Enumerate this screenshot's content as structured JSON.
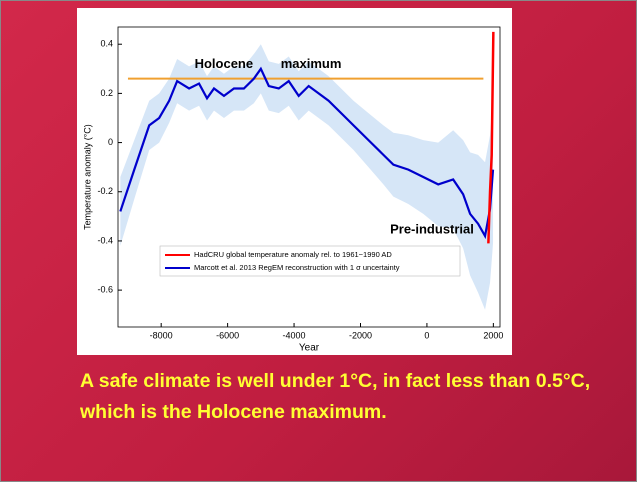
{
  "chart_data": {
    "type": "line",
    "x_label": "Year",
    "y_label": "Temperature anomaly (°C)",
    "xlim": [
      -9300,
      2200
    ],
    "xticks": [
      -8000,
      -6000,
      -4000,
      -2000,
      0,
      2000
    ],
    "ylim": [
      -0.75,
      0.47
    ],
    "yticks": [
      -0.6,
      -0.4,
      -0.2,
      0,
      0.2,
      0.4
    ],
    "grid": false,
    "series": [
      {
        "name": "HadCRU global temperature anomaly rel. to 1961−1990 AD",
        "color": "#ff0000",
        "x": [
          1850,
          1900,
          1950,
          2000
        ],
        "values": [
          -0.41,
          -0.2,
          -0.05,
          0.45
        ]
      },
      {
        "name": "Marcott et al. 2013 RegEM reconstruction with 1 σ uncertainty",
        "color": "#0000cc",
        "band_color": "#d6e6f7",
        "x": [
          -9230,
          -8810,
          -8360,
          -8060,
          -7760,
          -7520,
          -7160,
          -6860,
          -6620,
          -6410,
          -6110,
          -5810,
          -5510,
          -5210,
          -5000,
          -4760,
          -4460,
          -4160,
          -3860,
          -3560,
          -3260,
          -2960,
          -2510,
          -2210,
          -1760,
          -1310,
          -1010,
          -560,
          -110,
          340,
          790,
          1090,
          1300,
          1540,
          1750,
          1900,
          1990
        ],
        "values": [
          -0.28,
          -0.11,
          0.07,
          0.1,
          0.17,
          0.25,
          0.22,
          0.24,
          0.18,
          0.22,
          0.19,
          0.22,
          0.22,
          0.26,
          0.3,
          0.23,
          0.22,
          0.25,
          0.19,
          0.23,
          0.2,
          0.17,
          0.11,
          0.07,
          0.01,
          -0.05,
          -0.09,
          -0.11,
          -0.14,
          -0.17,
          -0.15,
          -0.21,
          -0.29,
          -0.33,
          -0.38,
          -0.27,
          -0.11
        ],
        "errors": [
          0.14,
          0.12,
          0.1,
          0.1,
          0.09,
          0.09,
          0.09,
          0.09,
          0.09,
          0.09,
          0.09,
          0.09,
          0.09,
          0.1,
          0.1,
          0.1,
          0.1,
          0.1,
          0.1,
          0.1,
          0.1,
          0.1,
          0.1,
          0.1,
          0.11,
          0.12,
          0.13,
          0.14,
          0.15,
          0.17,
          0.2,
          0.22,
          0.25,
          0.28,
          0.3,
          0.3,
          0.3
        ]
      }
    ],
    "reference_line": {
      "value": 0.26,
      "x": [
        -9000,
        1700
      ],
      "color": "#f0a030",
      "label": "Holocene maximum"
    },
    "annotation": "Pre-industrial"
  },
  "caption": "A safe climate is well under 1°C, in fact less than 0.5°C, which is the Holocene maximum."
}
